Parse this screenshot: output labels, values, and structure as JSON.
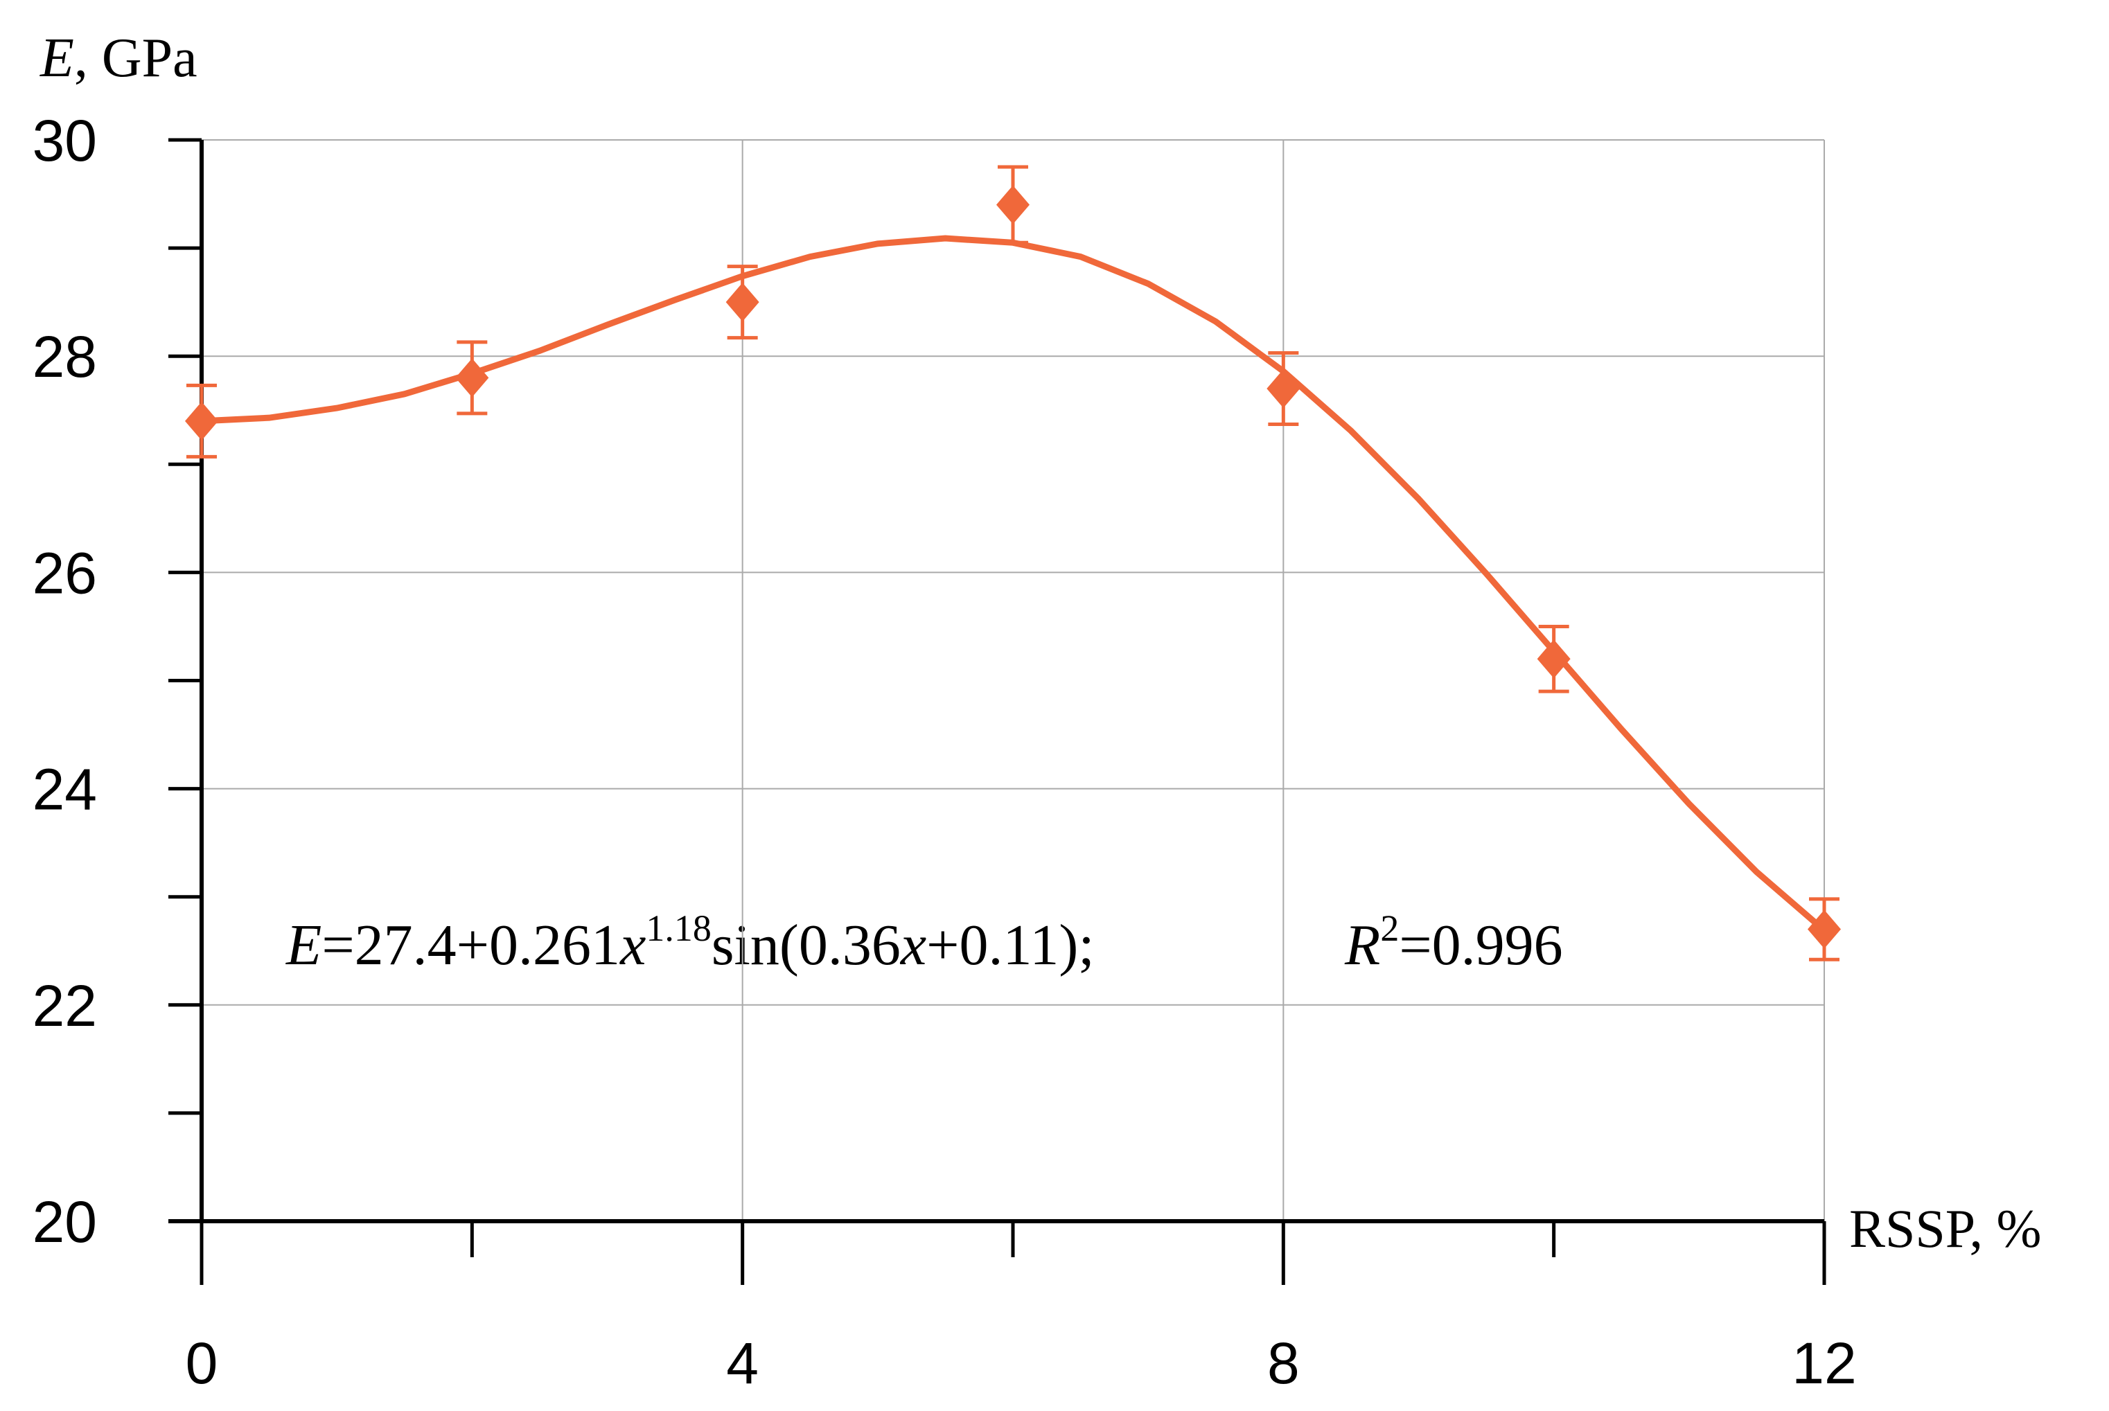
{
  "chart_data": {
    "type": "scatter",
    "ylabel": [
      "E",
      ", GPa"
    ],
    "xlabel": "RSSP, %",
    "series": [
      {
        "color": "#f0683a",
        "x": [
          0,
          2,
          4,
          6,
          8,
          10,
          12
        ],
        "values": [
          27.4,
          27.8,
          28.5,
          29.4,
          27.7,
          25.2,
          22.7
        ],
        "errors": [
          0.33,
          0.33,
          0.33,
          0.35,
          0.33,
          0.3,
          0.28
        ]
      }
    ],
    "fit_curve": {
      "color": "#f0683a",
      "x": [
        0,
        0.5,
        1,
        1.5,
        2,
        2.5,
        3,
        3.5,
        4,
        4.5,
        5,
        5.5,
        6,
        6.5,
        7,
        7.5,
        8,
        8.5,
        9,
        9.5,
        10,
        10.5,
        11,
        11.5,
        12
      ],
      "values": [
        27.4,
        27.43,
        27.52,
        27.65,
        27.84,
        28.05,
        28.29,
        28.52,
        28.74,
        28.92,
        29.04,
        29.09,
        29.05,
        28.92,
        28.67,
        28.32,
        27.86,
        27.31,
        26.68,
        25.99,
        25.27,
        24.55,
        23.86,
        23.23,
        22.69
      ]
    },
    "annotation": {
      "equation": [
        "E",
        "=27.4+0.261",
        "x",
        "1.18",
        "sin(0.36",
        "x",
        "+0.11);"
      ],
      "r2": [
        "R",
        "2",
        "=0.996"
      ]
    },
    "xlim": [
      0,
      12
    ],
    "xticks": [
      0,
      4,
      8,
      12
    ],
    "xminor": [
      2,
      6,
      10
    ],
    "ylim": [
      20,
      30
    ],
    "yticks": [
      20,
      22,
      24,
      26,
      28,
      30
    ],
    "yminor": [
      21,
      23,
      25,
      27,
      29
    ],
    "grid": true
  }
}
